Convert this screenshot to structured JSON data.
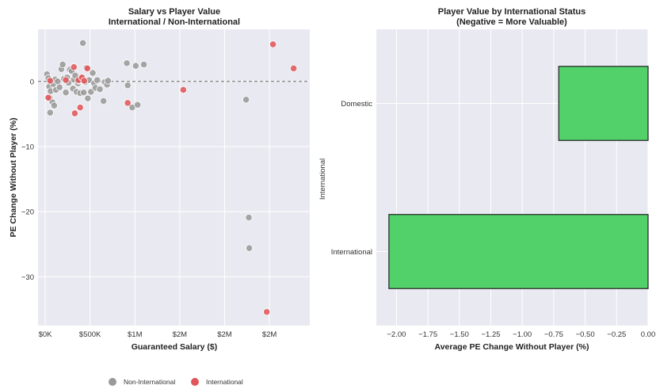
{
  "colors": {
    "plot_bg": "#e9e9f1",
    "grid": "#ffffff",
    "non_international": "#9a9a9a",
    "international": "#e0565b",
    "bar_fill": "#52d16b",
    "bar_edge": "#222222"
  },
  "chart_data": [
    {
      "type": "scatter",
      "title": "Salary vs Player Value",
      "subtitle": "International / Non-International",
      "xlabel": "Guaranteed Salary ($)",
      "ylabel": "PE Change Without Player (%)",
      "xlim": [
        -80000,
        2950000
      ],
      "ylim": [
        -37.5,
        8
      ],
      "xtick_values": [
        0,
        500000,
        1000000,
        1500000,
        2000000,
        2500000
      ],
      "xtick_labels": [
        "$0K",
        "$500K",
        "$1M",
        "$2M",
        "$2M",
        "$2M"
      ],
      "ytick_values": [
        0,
        -10,
        -20,
        -30
      ],
      "ytick_labels": [
        "0",
        "−10",
        "−20",
        "−30"
      ],
      "reference_line_y": 0,
      "grid": true,
      "legend_position": "bottom-center",
      "series": [
        {
          "name": "Non-International",
          "color_key": "non_international",
          "points": [
            [
              20000,
              1.1
            ],
            [
              35000,
              0.5
            ],
            [
              45000,
              -0.8
            ],
            [
              50000,
              -2.5
            ],
            [
              55000,
              -4.8
            ],
            [
              60000,
              -1.5
            ],
            [
              70000,
              0.1
            ],
            [
              80000,
              -3.2
            ],
            [
              90000,
              -0.4
            ],
            [
              100000,
              -3.7
            ],
            [
              110000,
              0.3
            ],
            [
              120000,
              -1.3
            ],
            [
              140000,
              0.0
            ],
            [
              160000,
              -0.9
            ],
            [
              180000,
              1.9
            ],
            [
              195000,
              2.6
            ],
            [
              210000,
              0.4
            ],
            [
              230000,
              -1.7
            ],
            [
              245000,
              0.6
            ],
            [
              260000,
              -0.2
            ],
            [
              275000,
              1.8
            ],
            [
              295000,
              1.6
            ],
            [
              310000,
              -1.1
            ],
            [
              320000,
              0.3
            ],
            [
              335000,
              0.9
            ],
            [
              350000,
              -1.6
            ],
            [
              365000,
              -0.3
            ],
            [
              375000,
              0.1
            ],
            [
              390000,
              -1.8
            ],
            [
              405000,
              0.5
            ],
            [
              420000,
              5.9
            ],
            [
              430000,
              -1.7
            ],
            [
              445000,
              -0.1
            ],
            [
              460000,
              2.1
            ],
            [
              475000,
              -2.6
            ],
            [
              490000,
              0.2
            ],
            [
              510000,
              -1.6
            ],
            [
              530000,
              1.3
            ],
            [
              545000,
              -0.3
            ],
            [
              560000,
              -1.0
            ],
            [
              580000,
              0.2
            ],
            [
              610000,
              -1.2
            ],
            [
              650000,
              -3.0
            ],
            [
              665000,
              -0.1
            ],
            [
              690000,
              -0.5
            ],
            [
              700000,
              0.1
            ],
            [
              910000,
              2.8
            ],
            [
              920000,
              -0.6
            ],
            [
              970000,
              -4.0
            ],
            [
              1010000,
              2.4
            ],
            [
              1030000,
              -3.6
            ],
            [
              1100000,
              2.6
            ],
            [
              2240000,
              -2.8
            ],
            [
              2270000,
              -20.9
            ],
            [
              2275000,
              -25.6
            ]
          ]
        },
        {
          "name": "International",
          "color_key": "international",
          "points": [
            [
              35000,
              -2.5
            ],
            [
              55000,
              0.1
            ],
            [
              230000,
              0.2
            ],
            [
              320000,
              2.2
            ],
            [
              330000,
              -4.9
            ],
            [
              370000,
              0.2
            ],
            [
              390000,
              -4.0
            ],
            [
              410000,
              0.6
            ],
            [
              435000,
              0.1
            ],
            [
              470000,
              2.0
            ],
            [
              920000,
              -3.3
            ],
            [
              1540000,
              -1.3
            ],
            [
              2470000,
              -35.4
            ],
            [
              2540000,
              5.7
            ],
            [
              2770000,
              2.0
            ]
          ]
        }
      ]
    },
    {
      "type": "bar",
      "orientation": "horizontal",
      "title": "Player Value by International Status",
      "subtitle": "(Negative = More Valuable)",
      "xlabel": "Average PE Change Without Player (%)",
      "ylabel": "International",
      "categories": [
        "Domestic",
        "International"
      ],
      "values": [
        -0.71,
        -2.06
      ],
      "xlim": [
        -2.16,
        0.0
      ],
      "xtick_values": [
        -2.0,
        -1.75,
        -1.5,
        -1.25,
        -1.0,
        -0.75,
        -0.5,
        -0.25,
        0.0
      ],
      "xtick_labels": [
        "−2.00",
        "−1.75",
        "−1.50",
        "−1.25",
        "−1.00",
        "−0.75",
        "−0.50",
        "−0.25",
        "0.00"
      ],
      "grid": true
    }
  ]
}
